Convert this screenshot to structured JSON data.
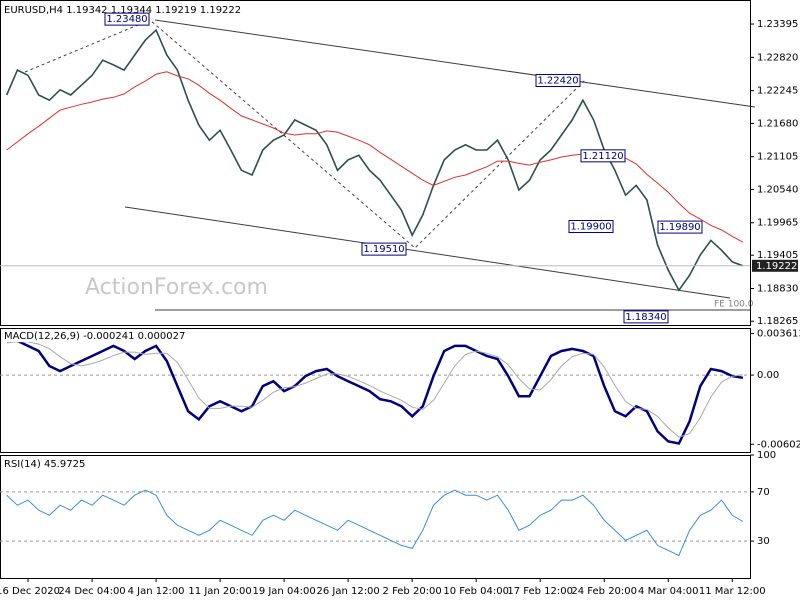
{
  "chart_data": [
    {
      "type": "line",
      "title": "EURUSD,H4  1.19342 1.19344 1.19219 1.19222",
      "watermark": "ActionForex.com",
      "series": [
        {
          "name": "EURUSD",
          "color": "#2f4f4f",
          "values": [
            1.2217,
            1.226,
            1.2251,
            1.2217,
            1.2208,
            1.2226,
            1.2217,
            1.2234,
            1.2251,
            1.2277,
            1.2269,
            1.226,
            1.2286,
            1.2312,
            1.2329,
            1.2286,
            1.226,
            1.2208,
            1.2165,
            1.2139,
            1.2156,
            1.2122,
            1.2087,
            1.2079,
            1.2122,
            1.2139,
            1.2148,
            1.2174,
            1.2165,
            1.2156,
            1.2131,
            1.2087,
            1.2105,
            1.2113,
            1.2087,
            1.207,
            1.2044,
            1.2018,
            1.1975,
            1.201,
            1.2061,
            1.2105,
            1.2122,
            1.2131,
            1.2122,
            1.2122,
            1.2139,
            1.2105,
            1.2053,
            1.207,
            1.2105,
            1.2122,
            1.2148,
            1.2174,
            1.2208,
            1.2174,
            1.2122,
            1.2087,
            1.2044,
            1.2061,
            1.2036,
            1.1958,
            1.1915,
            1.188,
            1.1906,
            1.1941,
            1.1966,
            1.1949,
            1.1929,
            1.19222
          ]
        },
        {
          "name": "MA",
          "color": "#e0302a",
          "values": [
            1.2122,
            1.2136,
            1.215,
            1.2163,
            1.2177,
            1.2191,
            1.2196,
            1.2201,
            1.2205,
            1.221,
            1.2213,
            1.2219,
            1.2231,
            1.2241,
            1.2253,
            1.2257,
            1.225,
            1.2245,
            1.2234,
            1.222,
            1.2208,
            1.2194,
            1.2181,
            1.2174,
            1.2167,
            1.216,
            1.2151,
            1.2148,
            1.215,
            1.215,
            1.2155,
            1.2153,
            1.2146,
            1.2139,
            1.2131,
            1.2118,
            1.2106,
            1.2094,
            1.2082,
            1.207,
            1.2061,
            1.2068,
            1.2075,
            1.2079,
            1.2086,
            1.2093,
            1.2103,
            1.2103,
            1.2099,
            1.2096,
            1.2101,
            1.2105,
            1.211,
            1.2113,
            1.2115,
            1.2118,
            1.2122,
            1.2113,
            1.2108,
            1.2098,
            1.208,
            1.2065,
            1.2049,
            1.203,
            1.2013,
            1.2003,
            1.1992,
            1.1984,
            1.1973,
            1.1963
          ]
        }
      ],
      "ylim": [
        1.182,
        1.2381
      ],
      "yticks": [
        1.23395,
        {
          "value": 1.2282,
          "label": "1.22820"
        },
        1.22245,
        {
          "value": 1.2168,
          "label": "1.21680"
        },
        1.21105,
        {
          "value": 1.2054,
          "label": "1.20540"
        },
        1.19965,
        1.19405,
        {
          "value": 1.1883,
          "label": "1.18830"
        },
        1.18265
      ],
      "annotations": [
        {
          "value": 1.2348,
          "label": "1.23480"
        },
        {
          "value": 1.2242,
          "label": "1.22420"
        },
        {
          "value": 1.2112,
          "label": "1.21120"
        },
        {
          "value": 1.199,
          "label": "1.19900"
        },
        {
          "value": 1.1989,
          "label": "1.19890"
        },
        {
          "value": 1.1951,
          "label": "1.19510"
        },
        {
          "value": 1.1834,
          "label": "1.18340"
        }
      ],
      "fe_label": "FE 100.0"
    },
    {
      "type": "line",
      "title": "MACD(12,26,9) -0.000241 0.000027",
      "series": [
        {
          "name": "MACD",
          "color": "#000080",
          "values": [
            0.00298,
            0.00298,
            0.00254,
            0.0021,
            0.00079,
            0.00035,
            0.00079,
            0.00123,
            0.00166,
            0.0021,
            0.00254,
            0.0021,
            0.0014,
            0.0021,
            0.00254,
            0.00123,
            -0.00096,
            -0.00315,
            -0.00386,
            -0.00272,
            -0.00228,
            -0.00272,
            -0.00315,
            -0.00272,
            -0.00096,
            -0.00053,
            -0.0014,
            -0.00096,
            -9e-05,
            0.00035,
            0.00053,
            -9e-05,
            -0.00053,
            -0.00096,
            -0.0014,
            -0.0021,
            -0.00228,
            -0.00272,
            -0.00359,
            -0.00272,
            -9e-05,
            0.0021,
            0.00254,
            0.00254,
            0.0021,
            0.00166,
            0.0014,
            -9e-05,
            -0.00184,
            -0.00184,
            -9e-05,
            0.00166,
            0.0021,
            0.00228,
            0.0021,
            0.00166,
            -0.00096,
            -0.00315,
            -0.00359,
            -0.00272,
            -0.00315,
            -0.00491,
            -0.00578,
            -0.00596,
            -0.00403,
            -0.00096,
            0.00053,
            0.00035,
            -9e-05,
            -0.00024
          ]
        },
        {
          "name": "Signal",
          "color": "#a9a9a9",
          "values": [
            0.0028,
            0.0029,
            0.0029,
            0.0027,
            0.0023,
            0.0016,
            0.001,
            0.0008,
            0.001,
            0.0013,
            0.0017,
            0.002,
            0.002,
            0.0018,
            0.0019,
            0.0019,
            0.0011,
            -0.0004,
            -0.002,
            -0.0029,
            -0.0029,
            -0.0027,
            -0.0027,
            -0.0028,
            -0.0022,
            -0.0015,
            -0.0011,
            -0.001,
            -0.0007,
            -0.0003,
            0.0001,
            0.0001,
            -0.0001,
            -0.0005,
            -0.0009,
            -0.0014,
            -0.0018,
            -0.0022,
            -0.0028,
            -0.003,
            -0.0022,
            -0.0007,
            0.0008,
            0.0018,
            0.0021,
            0.0019,
            0.0016,
            0.0009,
            -0.0003,
            -0.0012,
            -0.0013,
            -0.0004,
            0.0008,
            0.0016,
            0.0019,
            0.0018,
            0.0007,
            -0.0009,
            -0.0023,
            -0.0029,
            -0.003,
            -0.0036,
            -0.0046,
            -0.0054,
            -0.0051,
            -0.0037,
            -0.0019,
            -0.0006,
            -0.0001,
            3e-05
          ]
        }
      ],
      "ylim": [
        -0.0067,
        0.0041
      ],
      "yticks": [
        0.003613,
        {
          "value": 0,
          "label": "0.00"
        },
        -0.006026
      ],
      "levels": [
        0
      ]
    },
    {
      "type": "line",
      "title": "RSI(14) 45.9725",
      "categories": [
        null,
        null,
        "16 Dec 2020",
        null,
        null,
        null,
        null,
        null,
        "24 Dec 04:00",
        null,
        null,
        null,
        null,
        null,
        "4 Jan 12:00",
        null,
        null,
        null,
        null,
        null,
        "11 Jan 20:00",
        null,
        null,
        null,
        null,
        null,
        "19 Jan 04:00",
        null,
        null,
        null,
        null,
        null,
        "26 Jan 12:00",
        null,
        null,
        null,
        null,
        null,
        "2 Feb 20:00",
        null,
        null,
        null,
        null,
        null,
        "10 Feb 04:00",
        null,
        null,
        null,
        null,
        null,
        "17 Feb 12:00",
        null,
        null,
        null,
        null,
        null,
        "24 Feb 20:00",
        null,
        null,
        null,
        null,
        null,
        "4 Mar 04:00",
        null,
        null,
        null,
        null,
        null,
        "11 Mar 12:00",
        null
      ],
      "series": [
        {
          "name": "RSI",
          "color": "#3a8fd8",
          "values": [
            67.3,
            59.2,
            63.3,
            55.1,
            51.0,
            59.2,
            55.1,
            63.3,
            59.2,
            67.3,
            63.3,
            59.2,
            67.3,
            71.4,
            67.3,
            51.0,
            42.9,
            38.8,
            34.7,
            38.8,
            46.9,
            42.9,
            38.8,
            34.7,
            46.9,
            51.0,
            46.9,
            55.1,
            51.0,
            46.9,
            42.9,
            38.8,
            46.9,
            42.9,
            38.8,
            34.7,
            30.6,
            26.5,
            24.1,
            38.8,
            59.2,
            67.3,
            71.4,
            67.3,
            67.3,
            63.3,
            67.3,
            55.1,
            38.8,
            42.9,
            51.0,
            55.1,
            63.3,
            63.3,
            67.3,
            59.2,
            46.9,
            38.8,
            30.6,
            34.7,
            38.8,
            26.5,
            22.4,
            18.4,
            38.8,
            51.0,
            55.1,
            63.3,
            51.0,
            45.97
          ]
        }
      ],
      "ylim": [
        0,
        100
      ],
      "yticks": [
        100,
        70,
        30
      ],
      "levels": [
        70,
        30
      ]
    }
  ]
}
